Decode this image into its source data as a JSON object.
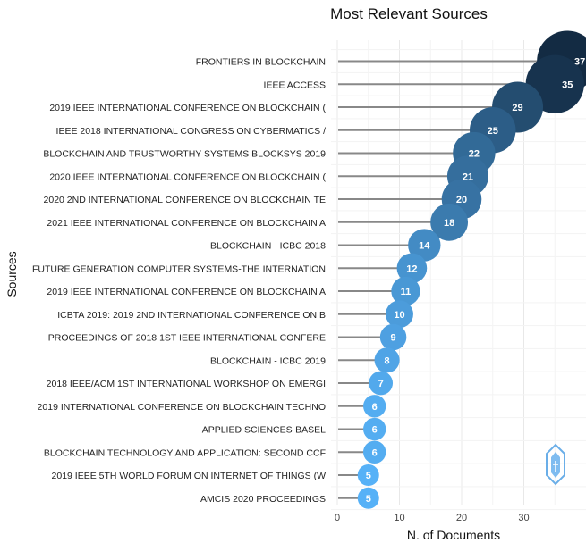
{
  "chart_data": {
    "type": "scatter",
    "title": "Most Relevant Sources",
    "xlabel": "N. of Documents",
    "ylabel": "Sources",
    "xlim": [
      0,
      38
    ],
    "x_ticks": [
      "0",
      "10",
      "20",
      "30"
    ],
    "grid": true,
    "categories": [
      "FRONTIERS IN BLOCKCHAIN",
      "IEEE ACCESS",
      "2019 IEEE INTERNATIONAL CONFERENCE ON BLOCKCHAIN (",
      "IEEE 2018 INTERNATIONAL CONGRESS ON CYBERMATICS /",
      "BLOCKCHAIN AND TRUSTWORTHY SYSTEMS BLOCKSYS 2019",
      "2020 IEEE INTERNATIONAL CONFERENCE ON BLOCKCHAIN (",
      "2020 2ND INTERNATIONAL CONFERENCE ON BLOCKCHAIN TE",
      "2021 IEEE INTERNATIONAL CONFERENCE ON BLOCKCHAIN A",
      "BLOCKCHAIN - ICBC 2018",
      "FUTURE GENERATION COMPUTER SYSTEMS-THE INTERNATION",
      "2019 IEEE INTERNATIONAL CONFERENCE ON BLOCKCHAIN A",
      "ICBTA 2019: 2019 2ND INTERNATIONAL CONFERENCE ON B",
      "PROCEEDINGS OF 2018 1ST IEEE INTERNATIONAL CONFERE",
      "BLOCKCHAIN - ICBC 2019",
      "2018 IEEE/ACM 1ST INTERNATIONAL WORKSHOP ON EMERGI",
      "2019 INTERNATIONAL CONFERENCE ON BLOCKCHAIN TECHNO",
      "APPLIED SCIENCES-BASEL",
      "BLOCKCHAIN TECHNOLOGY AND APPLICATION: SECOND CCF",
      "2019 IEEE 5TH WORLD FORUM ON INTERNET OF THINGS (W",
      "AMCIS 2020 PROCEEDINGS"
    ],
    "values": [
      37,
      35,
      29,
      25,
      22,
      21,
      20,
      18,
      14,
      12,
      11,
      10,
      9,
      8,
      7,
      6,
      6,
      6,
      5,
      5
    ],
    "color_low": "#56b1f7",
    "color_high": "#132b43",
    "stem_color": "#888888"
  }
}
